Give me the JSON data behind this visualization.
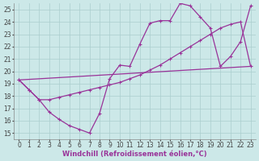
{
  "bg_color": "#cce8e8",
  "grid_color": "#aacece",
  "line_color": "#993399",
  "markersize": 2.0,
  "linewidth": 0.9,
  "xlabel": "Windchill (Refroidissement éolien,°C)",
  "xlabel_fontsize": 6.0,
  "tick_fontsize": 5.5,
  "xlim": [
    -0.5,
    23.5
  ],
  "ylim": [
    14.5,
    25.5
  ],
  "yticks": [
    15,
    16,
    17,
    18,
    19,
    20,
    21,
    22,
    23,
    24,
    25
  ],
  "xticks": [
    0,
    1,
    2,
    3,
    4,
    5,
    6,
    7,
    8,
    9,
    10,
    11,
    12,
    13,
    14,
    15,
    16,
    17,
    18,
    19,
    20,
    21,
    22,
    23
  ],
  "curve1_x": [
    0,
    1,
    2,
    3,
    4,
    5,
    6,
    7,
    8,
    9,
    10,
    11,
    12,
    13,
    14,
    15,
    16,
    17,
    18,
    19,
    20,
    21,
    22,
    23
  ],
  "curve1_y": [
    19.3,
    18.5,
    17.7,
    16.7,
    16.1,
    15.6,
    15.3,
    15.0,
    16.6,
    19.4,
    20.5,
    20.4,
    22.2,
    23.9,
    24.1,
    24.1,
    25.5,
    25.3,
    24.4,
    23.5,
    20.4,
    21.2,
    22.4,
    25.3
  ],
  "curve2_x": [
    0,
    23
  ],
  "curve2_y": [
    19.3,
    20.4
  ],
  "curve3_x": [
    0,
    1,
    2,
    3,
    4,
    5,
    6,
    7,
    8,
    9,
    10,
    11,
    12,
    13,
    14,
    15,
    16,
    17,
    18,
    19,
    20,
    21,
    22,
    23
  ],
  "curve3_y": [
    19.3,
    18.5,
    17.7,
    17.7,
    17.9,
    18.1,
    18.3,
    18.5,
    18.7,
    18.9,
    19.1,
    19.4,
    19.7,
    20.1,
    20.5,
    21.0,
    21.5,
    22.0,
    22.5,
    23.0,
    23.5,
    23.8,
    24.0,
    20.4
  ]
}
